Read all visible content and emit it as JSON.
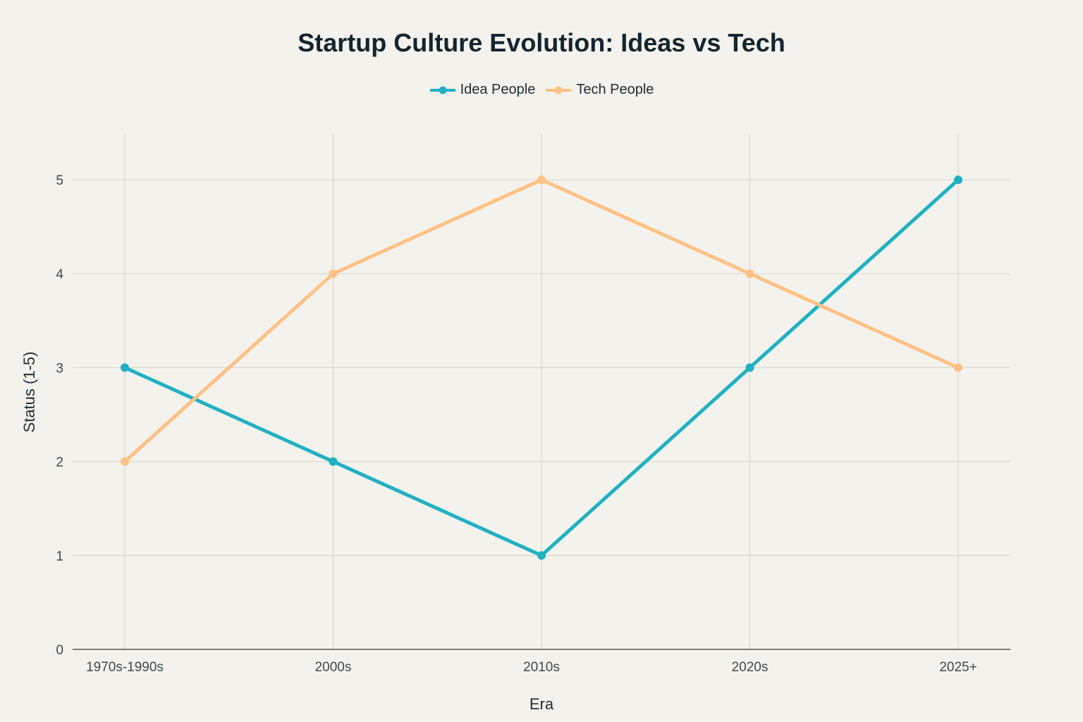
{
  "chart_data": {
    "type": "line",
    "title": "Startup Culture Evolution: Ideas vs Tech",
    "xlabel": "Era",
    "ylabel": "Status (1-5)",
    "categories": [
      "1970s-1990s",
      "2000s",
      "2010s",
      "2020s",
      "2025+"
    ],
    "ylim": [
      0,
      5.5
    ],
    "yticks": [
      "0",
      "1",
      "2",
      "3",
      "4",
      "5"
    ],
    "grid": true,
    "legend_position": "top-center",
    "series": [
      {
        "name": "Idea People",
        "color": "#1fb1c2",
        "values": [
          3,
          2,
          1,
          3,
          5
        ]
      },
      {
        "name": "Tech People",
        "color": "#ffc185",
        "values": [
          2,
          4,
          5,
          4,
          3
        ]
      }
    ]
  }
}
